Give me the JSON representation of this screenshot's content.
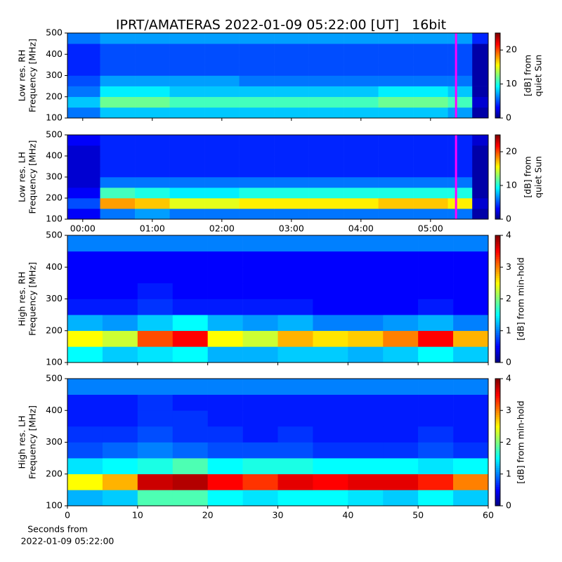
{
  "title": "IPRT/AMATERAS 2022-01-09 05:22:00 [UT]   16bit",
  "chart_data": [
    {
      "type": "heatmap",
      "ylabel": [
        "Low res. RH",
        "Frequency [MHz]"
      ],
      "xlim": [
        -0.22,
        5.83
      ],
      "xticks": [
        {
          "value": 0,
          "label": "00:00"
        },
        {
          "value": 1,
          "label": "01:00"
        },
        {
          "value": 2,
          "label": "02:00"
        },
        {
          "value": 3,
          "label": "03:00"
        },
        {
          "value": 4,
          "label": "04:00"
        },
        {
          "value": 5,
          "label": "05:00"
        }
      ],
      "show_xticklabels": false,
      "ylim": [
        100,
        500
      ],
      "yticks": [
        100,
        200,
        300,
        400,
        500
      ],
      "x_bins": [
        -0.22,
        0.25,
        0.75,
        1.25,
        1.75,
        2.25,
        2.75,
        3.25,
        3.75,
        4.25,
        4.75,
        5.25,
        5.6,
        5.83
      ],
      "y_bins": [
        100,
        150,
        200,
        250,
        300,
        350,
        400,
        450,
        500
      ],
      "values": [
        [
          6,
          8,
          8,
          8,
          8,
          8,
          8,
          8,
          8,
          8,
          8,
          7,
          1
        ],
        [
          8,
          12,
          12,
          11,
          11,
          11,
          11,
          11,
          11,
          12,
          12,
          11,
          2
        ],
        [
          6,
          9,
          9,
          8,
          8,
          8,
          8,
          8,
          8,
          9,
          9,
          8,
          1
        ],
        [
          5,
          7,
          7,
          7,
          7,
          6,
          6,
          6,
          6,
          6,
          6,
          6,
          1
        ],
        [
          4,
          5,
          5,
          5,
          5,
          5,
          5,
          5,
          5,
          5,
          5,
          5,
          1
        ],
        [
          4,
          5,
          5,
          5,
          5,
          5,
          5,
          5,
          5,
          5,
          5,
          5,
          1
        ],
        [
          4,
          5,
          5,
          5,
          5,
          5,
          5,
          5,
          5,
          5,
          5,
          5,
          1
        ],
        [
          6,
          7,
          7,
          7,
          7,
          7,
          7,
          7,
          7,
          7,
          7,
          7,
          4
        ]
      ],
      "marker_x": 5.367,
      "marker_color": "#ff00ff",
      "colorbar": {
        "clim": [
          0,
          25
        ],
        "ticks": [
          0,
          10,
          20
        ],
        "label": [
          "[dB] from",
          "quiet Sun"
        ]
      }
    },
    {
      "type": "heatmap",
      "ylabel": [
        "Low res. LH",
        "Frequency [MHz]"
      ],
      "xlim": [
        -0.22,
        5.83
      ],
      "xticks": [
        {
          "value": 0,
          "label": "00:00"
        },
        {
          "value": 1,
          "label": "01:00"
        },
        {
          "value": 2,
          "label": "02:00"
        },
        {
          "value": 3,
          "label": "03:00"
        },
        {
          "value": 4,
          "label": "04:00"
        },
        {
          "value": 5,
          "label": "05:00"
        }
      ],
      "show_xticklabels": true,
      "ylim": [
        100,
        500
      ],
      "yticks": [
        100,
        200,
        300,
        400,
        500
      ],
      "x_bins": [
        -0.22,
        0.25,
        0.75,
        1.25,
        1.75,
        2.25,
        2.75,
        3.25,
        3.75,
        4.25,
        4.75,
        5.25,
        5.6,
        5.83
      ],
      "y_bins": [
        100,
        150,
        200,
        250,
        300,
        350,
        400,
        450,
        500
      ],
      "values": [
        [
          3,
          6,
          7,
          6,
          6,
          6,
          6,
          6,
          6,
          6,
          6,
          6,
          1
        ],
        [
          5,
          18,
          17,
          15,
          15,
          16,
          16,
          16,
          16,
          17,
          17,
          16,
          2
        ],
        [
          3,
          11,
          10,
          9,
          9,
          10,
          10,
          10,
          10,
          10,
          10,
          10,
          1
        ],
        [
          2,
          6,
          6,
          6,
          6,
          6,
          6,
          6,
          6,
          6,
          6,
          6,
          1
        ],
        [
          2,
          4,
          4,
          4,
          4,
          4,
          4,
          4,
          4,
          4,
          4,
          4,
          1
        ],
        [
          2,
          4,
          4,
          4,
          4,
          4,
          4,
          4,
          4,
          4,
          4,
          4,
          1
        ],
        [
          2,
          4,
          4,
          4,
          4,
          4,
          4,
          4,
          4,
          4,
          4,
          4,
          1
        ],
        [
          3,
          4,
          4,
          4,
          4,
          4,
          4,
          4,
          4,
          4,
          4,
          4,
          2
        ]
      ],
      "marker_x": 5.367,
      "marker_color": "#ff00ff",
      "colorbar": {
        "clim": [
          0,
          25
        ],
        "ticks": [
          0,
          10,
          20
        ],
        "label": [
          "[dB] from",
          "quiet Sun"
        ]
      }
    },
    {
      "type": "heatmap",
      "ylabel": [
        "High res. RH",
        "Frequency [MHz]"
      ],
      "xlim": [
        0,
        60
      ],
      "xticks": [
        0,
        10,
        20,
        30,
        40,
        50,
        60
      ],
      "show_xticklabels": false,
      "ylim": [
        100,
        500
      ],
      "yticks": [
        100,
        200,
        300,
        400,
        500
      ],
      "x_bins": [
        0,
        5,
        10,
        15,
        20,
        25,
        30,
        35,
        40,
        45,
        50,
        55,
        60
      ],
      "y_bins": [
        100,
        150,
        200,
        250,
        300,
        350,
        400,
        450,
        500
      ],
      "values": [
        [
          1.5,
          1.3,
          1.4,
          1.5,
          1.2,
          1.2,
          1.3,
          1.3,
          1.2,
          1.3,
          1.5,
          1.3
        ],
        [
          2.5,
          2.3,
          3.2,
          3.5,
          2.5,
          2.3,
          2.8,
          2.6,
          2.7,
          3.0,
          3.5,
          2.8
        ],
        [
          1.2,
          1.1,
          1.3,
          1.5,
          1.2,
          1.1,
          1.2,
          1.0,
          1.0,
          1.1,
          1.2,
          1.0
        ],
        [
          0.6,
          0.6,
          0.7,
          0.6,
          0.6,
          0.6,
          0.6,
          0.5,
          0.5,
          0.5,
          0.6,
          0.5
        ],
        [
          0.5,
          0.5,
          0.6,
          0.5,
          0.5,
          0.5,
          0.5,
          0.5,
          0.5,
          0.5,
          0.5,
          0.5
        ],
        [
          0.5,
          0.5,
          0.5,
          0.5,
          0.5,
          0.5,
          0.5,
          0.5,
          0.5,
          0.5,
          0.5,
          0.5
        ],
        [
          0.5,
          0.5,
          0.5,
          0.5,
          0.5,
          0.5,
          0.5,
          0.5,
          0.5,
          0.5,
          0.5,
          0.5
        ],
        [
          1.0,
          1.0,
          1.0,
          1.0,
          1.0,
          1.0,
          1.0,
          1.0,
          1.0,
          1.0,
          1.0,
          1.0
        ]
      ],
      "colorbar": {
        "clim": [
          0,
          4
        ],
        "ticks": [
          0,
          1,
          2,
          3,
          4
        ],
        "label": [
          "[dB] from min-hold"
        ]
      }
    },
    {
      "type": "heatmap",
      "ylabel": [
        "High res. LH",
        "Frequency [MHz]"
      ],
      "xlabel": [
        "Seconds from",
        "2022-01-09 05:22:00"
      ],
      "xlim": [
        0,
        60
      ],
      "xticks": [
        0,
        10,
        20,
        30,
        40,
        50,
        60
      ],
      "show_xticklabels": true,
      "ylim": [
        100,
        500
      ],
      "yticks": [
        100,
        200,
        300,
        400,
        500
      ],
      "x_bins": [
        0,
        5,
        10,
        15,
        20,
        25,
        30,
        35,
        40,
        45,
        50,
        55,
        60
      ],
      "y_bins": [
        100,
        150,
        200,
        250,
        300,
        350,
        400,
        450,
        500
      ],
      "values": [
        [
          1.2,
          1.3,
          1.8,
          1.8,
          1.5,
          1.4,
          1.5,
          1.5,
          1.4,
          1.3,
          1.5,
          1.3
        ],
        [
          2.5,
          2.8,
          3.7,
          3.8,
          3.5,
          3.3,
          3.6,
          3.5,
          3.6,
          3.6,
          3.4,
          3.0
        ],
        [
          1.4,
          1.5,
          1.6,
          1.8,
          1.5,
          1.6,
          1.6,
          1.5,
          1.5,
          1.5,
          1.4,
          1.5
        ],
        [
          0.8,
          0.9,
          1.0,
          0.9,
          0.8,
          0.8,
          0.8,
          0.7,
          0.7,
          0.7,
          0.8,
          0.7
        ],
        [
          0.7,
          0.7,
          0.8,
          0.7,
          0.7,
          0.6,
          0.7,
          0.6,
          0.6,
          0.6,
          0.7,
          0.6
        ],
        [
          0.6,
          0.6,
          0.7,
          0.7,
          0.6,
          0.6,
          0.6,
          0.6,
          0.6,
          0.6,
          0.6,
          0.6
        ],
        [
          0.6,
          0.6,
          0.7,
          0.6,
          0.6,
          0.6,
          0.6,
          0.6,
          0.6,
          0.6,
          0.6,
          0.6
        ],
        [
          1.0,
          1.0,
          1.0,
          1.0,
          1.0,
          1.0,
          1.0,
          1.0,
          1.0,
          1.0,
          1.0,
          1.0
        ]
      ],
      "colorbar": {
        "clim": [
          0,
          4
        ],
        "ticks": [
          0,
          1,
          2,
          3,
          4
        ],
        "label": [
          "[dB] from min-hold"
        ]
      }
    }
  ]
}
